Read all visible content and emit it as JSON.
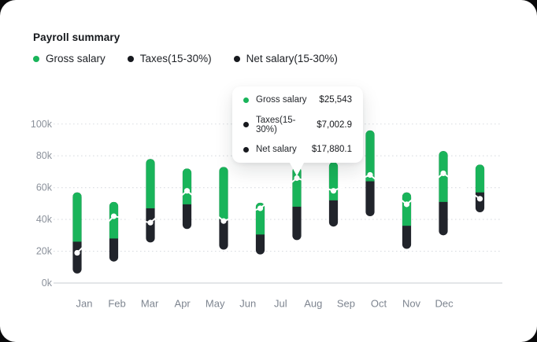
{
  "card": {
    "title": "Payroll summary"
  },
  "legend": [
    {
      "label": "Gross salary",
      "color": "#19b45a"
    },
    {
      "label": "Taxes(15-30%)",
      "color": "#17191e"
    },
    {
      "label": "Net salary(15-30%)",
      "color": "#17191e"
    }
  ],
  "tooltip": {
    "rows": [
      {
        "label": "Gross salary",
        "value": "$25,543",
        "color": "#19b45a"
      },
      {
        "label": "Taxes(15-30%)",
        "value": "$7,002.9",
        "color": "#17191e"
      },
      {
        "label": "Net salary",
        "value": "$17,880.1",
        "color": "#17191e"
      }
    ],
    "points_to": "Jul"
  },
  "chart_data": {
    "type": "bar",
    "subtype": "floating-range-stacked-capsules-with-marker-line",
    "title": "Payroll summary",
    "categories": [
      "Jan",
      "Feb",
      "Mar",
      "Apr",
      "May",
      "Jun",
      "Jul",
      "Aug",
      "Sep",
      "Oct",
      "Nov",
      "Dec"
    ],
    "units": "USD thousands",
    "series": [
      {
        "name": "bar_top_gross_k",
        "values": [
          57,
          51,
          78,
          72,
          73,
          50.5,
          73,
          76,
          96,
          57,
          83,
          74.5
        ]
      },
      {
        "name": "bar_split_taxes_k",
        "values": [
          26,
          28,
          47,
          49.5,
          40,
          30.5,
          48,
          52,
          64,
          36,
          51,
          57
        ]
      },
      {
        "name": "bar_bottom_k",
        "values": [
          6,
          13.5,
          25.5,
          34,
          21,
          18,
          27,
          35.5,
          42,
          21.5,
          30,
          44.5
        ]
      },
      {
        "name": "marker_line_k",
        "values": [
          19,
          42,
          38,
          58,
          39,
          47,
          66,
          58,
          68,
          49.5,
          69,
          53
        ]
      }
    ],
    "yticks": [
      {
        "value": 0,
        "label": "0k"
      },
      {
        "value": 20,
        "label": "20k"
      },
      {
        "value": 40,
        "label": "40k"
      },
      {
        "value": 60,
        "label": "60k"
      },
      {
        "value": 80,
        "label": "80k"
      },
      {
        "value": 100,
        "label": "100k"
      }
    ],
    "ylim": [
      0,
      100
    ],
    "grid": "dotted horizontal",
    "legend_position": "top-left",
    "colors": {
      "gross_green": "#19b45a",
      "dark_segment": "#21242b",
      "marker_line": "#ffffff",
      "gridline": "#dadde2",
      "axis_line": "#d2d6db",
      "ytick_text": "#8b919b",
      "xtick_text": "#7e8590"
    }
  }
}
